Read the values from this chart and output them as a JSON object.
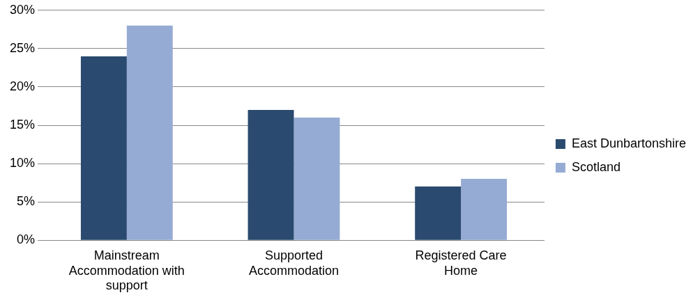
{
  "chart_data": {
    "type": "bar",
    "categories": [
      "Mainstream Accommodation with support",
      "Supported Accommodation",
      "Registered Care Home"
    ],
    "series": [
      {
        "name": "East Dunbartonshire",
        "color": "#2a4a6f",
        "values": [
          24,
          17,
          7
        ]
      },
      {
        "name": "Scotland",
        "color": "#95abd3",
        "values": [
          28,
          16,
          8
        ]
      }
    ],
    "ylim": [
      0,
      30
    ],
    "yticks": [
      {
        "value": 0,
        "label": "0%"
      },
      {
        "value": 5,
        "label": "5%"
      },
      {
        "value": 10,
        "label": "10%"
      },
      {
        "value": 15,
        "label": "15%"
      },
      {
        "value": 20,
        "label": "20%"
      },
      {
        "value": 25,
        "label": "25%"
      },
      {
        "value": 30,
        "label": "30%"
      }
    ],
    "grid": "y",
    "legend": "right"
  }
}
